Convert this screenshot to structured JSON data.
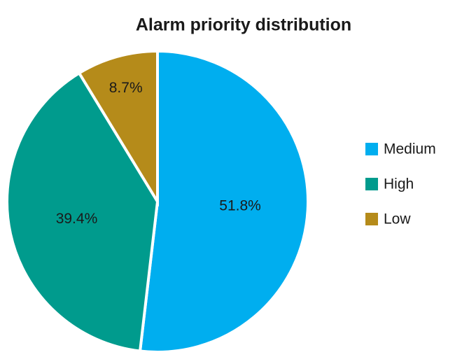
{
  "chart_data": {
    "type": "pie",
    "title": "Alarm priority distribution",
    "categories": [
      "Medium",
      "High",
      "Low"
    ],
    "values": [
      51.8,
      39.4,
      8.7
    ],
    "value_labels": [
      "51.8%",
      "39.4%",
      "8.7%"
    ],
    "colors": [
      "#00aeef",
      "#009b8d",
      "#b58b1a"
    ],
    "legend": "right"
  }
}
